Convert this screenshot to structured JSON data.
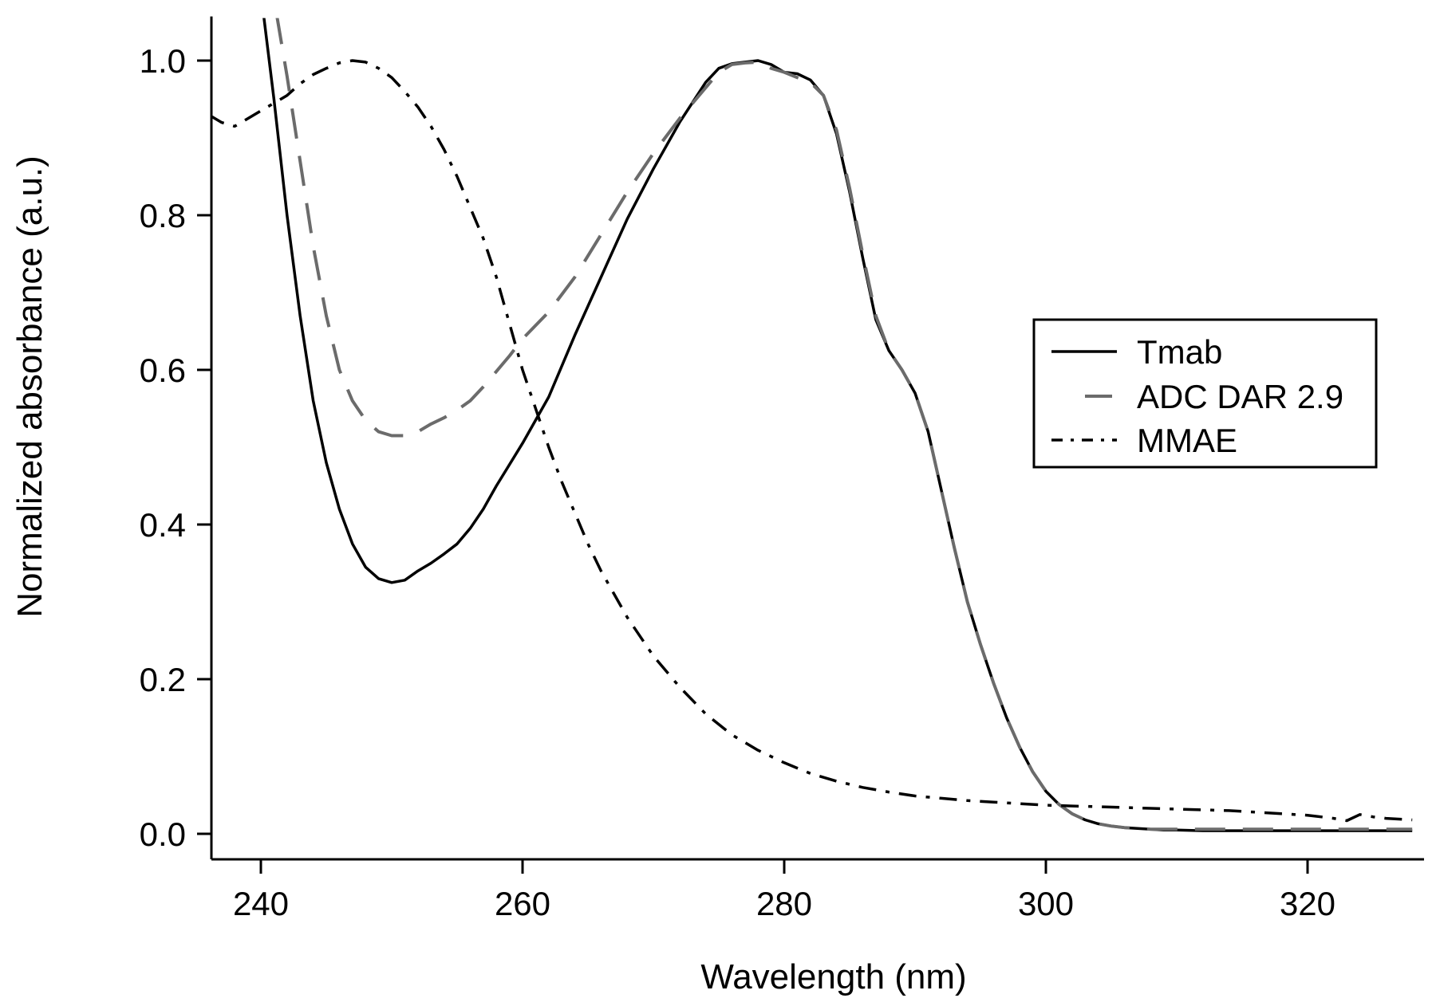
{
  "chart_data": {
    "type": "line",
    "xlabel": "Wavelength (nm)",
    "ylabel": "Normalized absorbance (a.u.)",
    "xlim": [
      236,
      328
    ],
    "ylim": [
      -0.03,
      1.055
    ],
    "xticks": [
      "240",
      "260",
      "280",
      "300",
      "320"
    ],
    "xtick_values": [
      240,
      260,
      280,
      300,
      320
    ],
    "yticks": [
      "0.0",
      "0.2",
      "0.4",
      "0.6",
      "0.8",
      "1.0"
    ],
    "ytick_values": [
      0.0,
      0.2,
      0.4,
      0.6,
      0.8,
      1.0
    ],
    "grid": false,
    "legend_placement": "right",
    "series": [
      {
        "name": "Tmab",
        "color": "#000000",
        "dash": "solid",
        "x": [
          240.2,
          241,
          242,
          243,
          244,
          245,
          246,
          247,
          248,
          249,
          250,
          251,
          252,
          253,
          254,
          255,
          256,
          257,
          258,
          260,
          262,
          264,
          266,
          268,
          270,
          272,
          274,
          275,
          276,
          277,
          278,
          279,
          280,
          281,
          282,
          283,
          284,
          285,
          286,
          287,
          288,
          289,
          290,
          291,
          292,
          293,
          294,
          295,
          296,
          297,
          298,
          299,
          300,
          301,
          302,
          303,
          304,
          305,
          306,
          307,
          308,
          309,
          310,
          312,
          314,
          316,
          318,
          320,
          322,
          324,
          326,
          328
        ],
        "y": [
          1.06,
          0.95,
          0.8,
          0.67,
          0.56,
          0.48,
          0.42,
          0.375,
          0.345,
          0.33,
          0.325,
          0.328,
          0.34,
          0.35,
          0.362,
          0.375,
          0.395,
          0.42,
          0.45,
          0.505,
          0.565,
          0.645,
          0.72,
          0.795,
          0.86,
          0.92,
          0.972,
          0.99,
          0.996,
          0.998,
          1.0,
          0.995,
          0.985,
          0.983,
          0.975,
          0.955,
          0.905,
          0.83,
          0.745,
          0.665,
          0.625,
          0.6,
          0.57,
          0.52,
          0.445,
          0.37,
          0.3,
          0.245,
          0.195,
          0.15,
          0.112,
          0.08,
          0.055,
          0.038,
          0.026,
          0.018,
          0.013,
          0.01,
          0.008,
          0.007,
          0.006,
          0.005,
          0.005,
          0.004,
          0.004,
          0.004,
          0.004,
          0.004,
          0.004,
          0.004,
          0.004,
          0.004
        ]
      },
      {
        "name": "ADC DAR 2.9",
        "color": "#6b6b6b",
        "dash": "dashed",
        "x": [
          241.2,
          242,
          243,
          244,
          245,
          246,
          247,
          248,
          249,
          250,
          251,
          252,
          253,
          254,
          255,
          256,
          257,
          258,
          259,
          260,
          262,
          264,
          266,
          268,
          270,
          272,
          274,
          275,
          276,
          277,
          278,
          279,
          280,
          281,
          282,
          283,
          284,
          285,
          286,
          287,
          288,
          289,
          290,
          291,
          292,
          293,
          294,
          295,
          296,
          297,
          298,
          299,
          300,
          301,
          302,
          303,
          304,
          305,
          306,
          307,
          308,
          309,
          310,
          312,
          314,
          316,
          318,
          320,
          322,
          324,
          326,
          328
        ],
        "y": [
          1.06,
          0.98,
          0.87,
          0.76,
          0.67,
          0.6,
          0.56,
          0.535,
          0.52,
          0.515,
          0.515,
          0.52,
          0.53,
          0.538,
          0.548,
          0.56,
          0.578,
          0.598,
          0.618,
          0.64,
          0.675,
          0.72,
          0.775,
          0.83,
          0.88,
          0.925,
          0.965,
          0.985,
          0.995,
          0.997,
          0.998,
          0.99,
          0.985,
          0.978,
          0.972,
          0.955,
          0.91,
          0.835,
          0.75,
          0.67,
          0.625,
          0.6,
          0.57,
          0.52,
          0.445,
          0.37,
          0.3,
          0.245,
          0.195,
          0.15,
          0.112,
          0.08,
          0.055,
          0.038,
          0.026,
          0.018,
          0.013,
          0.01,
          0.008,
          0.007,
          0.006,
          0.006,
          0.006,
          0.006,
          0.006,
          0.006,
          0.006,
          0.006,
          0.006,
          0.006,
          0.006,
          0.006
        ]
      },
      {
        "name": "MMAE",
        "color": "#000000",
        "dash": "dashdot",
        "x": [
          236,
          237,
          238,
          239,
          240,
          241,
          242,
          243,
          244,
          245,
          246,
          247,
          248,
          249,
          250,
          251,
          252,
          253,
          254,
          255,
          256,
          257,
          258,
          259,
          260,
          261,
          262,
          263,
          264,
          265,
          266,
          268,
          270,
          272,
          274,
          276,
          278,
          280,
          282,
          284,
          286,
          288,
          290,
          292,
          294,
          296,
          298,
          300,
          302,
          304,
          306,
          308,
          310,
          312,
          314,
          316,
          318,
          320,
          322,
          323,
          324,
          325,
          326,
          328
        ],
        "y": [
          0.93,
          0.92,
          0.915,
          0.925,
          0.935,
          0.945,
          0.955,
          0.97,
          0.982,
          0.99,
          0.997,
          1.0,
          0.998,
          0.99,
          0.978,
          0.96,
          0.94,
          0.915,
          0.885,
          0.85,
          0.81,
          0.77,
          0.72,
          0.66,
          0.6,
          0.55,
          0.5,
          0.455,
          0.415,
          0.375,
          0.34,
          0.28,
          0.23,
          0.19,
          0.155,
          0.128,
          0.108,
          0.092,
          0.078,
          0.068,
          0.06,
          0.054,
          0.049,
          0.046,
          0.043,
          0.041,
          0.039,
          0.037,
          0.036,
          0.035,
          0.034,
          0.033,
          0.032,
          0.031,
          0.03,
          0.028,
          0.026,
          0.024,
          0.02,
          0.017,
          0.025,
          0.022,
          0.02,
          0.018
        ]
      }
    ]
  }
}
